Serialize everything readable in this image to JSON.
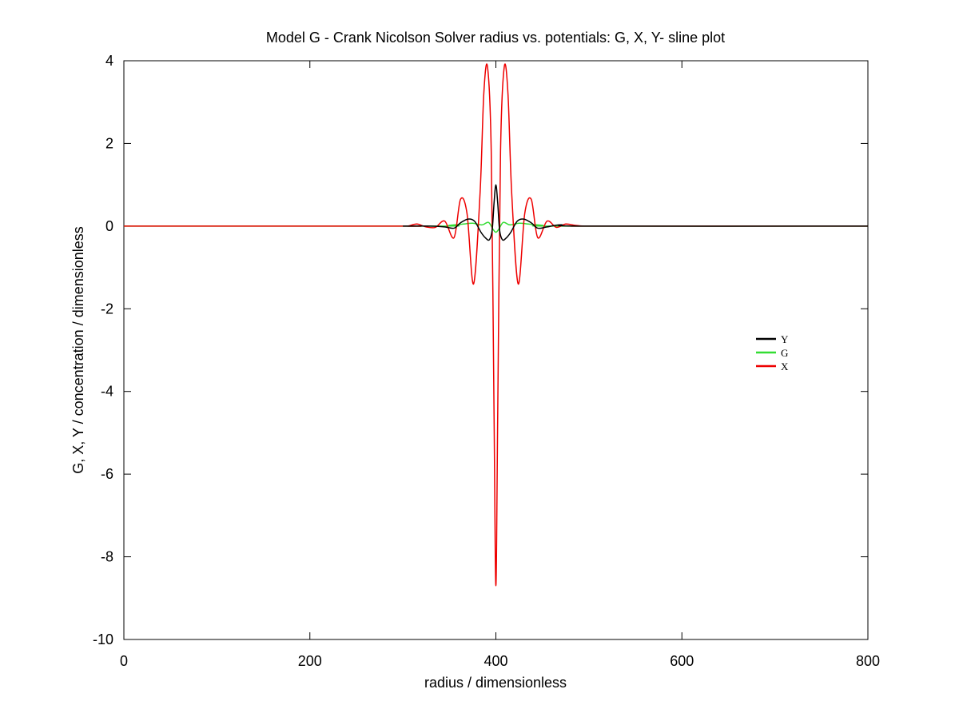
{
  "chart_data": {
    "type": "line",
    "title": "Model G - Crank Nicolson Solver radius vs. potentials: G, X, Y- sline plot",
    "xlabel": "radius / dimensionless",
    "ylabel": "G, X, Y / concentration / dimensionless",
    "xlim": [
      0,
      800
    ],
    "ylim": [
      -10,
      4
    ],
    "x_ticks": [
      0,
      200,
      400,
      600,
      800
    ],
    "y_ticks": [
      4,
      2,
      0,
      -2,
      -4,
      -6,
      -8,
      -10
    ],
    "grid": false,
    "legend_position": "right",
    "series": [
      {
        "name": "Y",
        "color": "#000000",
        "x": [
          300,
          330,
          345,
          355,
          362,
          370,
          377,
          384,
          389,
          393,
          396,
          398,
          400,
          402,
          404,
          407,
          411,
          416,
          423,
          430,
          438,
          445,
          455,
          470,
          500,
          800
        ],
        "y": [
          0,
          0,
          -0.02,
          -0.05,
          0.08,
          0.17,
          0.12,
          -0.15,
          -0.29,
          -0.33,
          -0.1,
          0.55,
          1.0,
          0.55,
          -0.1,
          -0.33,
          -0.29,
          -0.15,
          0.12,
          0.17,
          0.08,
          -0.05,
          -0.02,
          0.03,
          0,
          0
        ]
      },
      {
        "name": "G",
        "color": "#33dd33",
        "x": [
          0,
          330,
          350,
          365,
          375,
          385,
          392,
          397,
          400,
          403,
          408,
          415,
          425,
          435,
          450,
          470,
          800
        ],
        "y": [
          0,
          0,
          0.02,
          0.05,
          0.07,
          0.03,
          0.09,
          -0.08,
          -0.15,
          -0.08,
          0.09,
          0.03,
          0.07,
          0.05,
          0.02,
          0,
          0
        ]
      },
      {
        "name": "X",
        "color": "#ee0000",
        "x": [
          0,
          295,
          305,
          315,
          325,
          335,
          345,
          355,
          362,
          369,
          376,
          383,
          387,
          391,
          395,
          398,
          400,
          402,
          405,
          409,
          413,
          417,
          424,
          431,
          438,
          445,
          455,
          465,
          475,
          485,
          495,
          505,
          800
        ],
        "y": [
          0,
          0,
          0.0,
          0.05,
          -0.02,
          -0.03,
          0.12,
          -0.28,
          0.65,
          0.3,
          -1.4,
          0.8,
          3.2,
          3.85,
          1.8,
          -4.5,
          -8.7,
          -4.5,
          1.8,
          3.85,
          3.2,
          0.8,
          -1.4,
          0.3,
          0.65,
          -0.28,
          0.12,
          -0.03,
          0.05,
          0.02,
          0.0,
          0,
          0
        ]
      }
    ]
  }
}
